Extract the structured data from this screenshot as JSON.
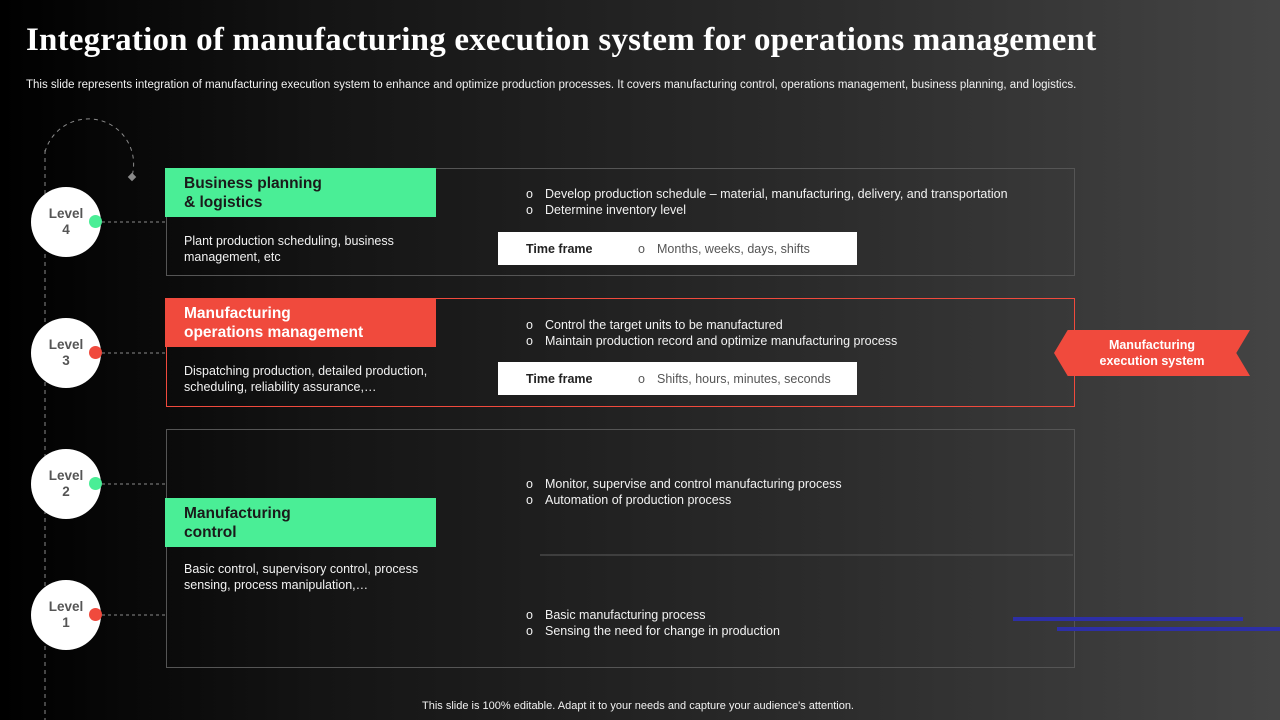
{
  "title": "Integration of  manufacturing execution system for operations management",
  "subtitle": "This slide represents integration of manufacturing execution system to enhance and optimize production processes. It covers manufacturing control, operations management, business planning, and logistics.",
  "footer": "This slide is 100% editable.  Adapt it to your needs and capture your audience's attention.",
  "colors": {
    "green": "#4aee96",
    "red": "#f04a3d",
    "panel_border": "#555555",
    "deco_blue": "#2d2fa6"
  },
  "levels": [
    {
      "word": "Level",
      "number": "4",
      "dot_color": "#4aee96"
    },
    {
      "word": "Level",
      "number": "3",
      "dot_color": "#f04a3d"
    },
    {
      "word": "Level",
      "number": "2",
      "dot_color": "#4aee96"
    },
    {
      "word": "Level",
      "number": "1",
      "dot_color": "#f04a3d"
    }
  ],
  "sections": [
    {
      "header_line1": "Business planning",
      "header_line2": "& logistics",
      "description": "Plant production scheduling, business management,  etc",
      "bullets": [
        "Develop  production  schedule – material,  manufacturing,  delivery,  and transportation",
        "Determine  inventory  level"
      ],
      "timeframe_label": "Time frame",
      "timeframe_value": "Months,  weeks,  days,  shifts"
    },
    {
      "header_line1": "Manufacturing",
      "header_line2": "operations management",
      "description": "Dispatching production, detailed production, scheduling,  reliability assurance,…",
      "bullets": [
        "Control  the target units to be  manufactured",
        "Maintain  production  record  and optimize manufacturing  process"
      ],
      "timeframe_label": "Time frame",
      "timeframe_value": "Shifts,  hours,  minutes,  seconds"
    },
    {
      "header_line1": "Manufacturing",
      "header_line2": "control",
      "description": "Basic control,  supervisory  control,  process sensing,  process manipulation,…",
      "bullets_level2": [
        "Monitor,  supervise  and  control manufacturing  process",
        "Automation  of  production  process"
      ],
      "bullets_level1": [
        "Basic manufacturing  process",
        "Sensing  the need for  change  in  production"
      ]
    }
  ],
  "bullet_glyph": "o",
  "mes_label": "Manufacturing execution system"
}
